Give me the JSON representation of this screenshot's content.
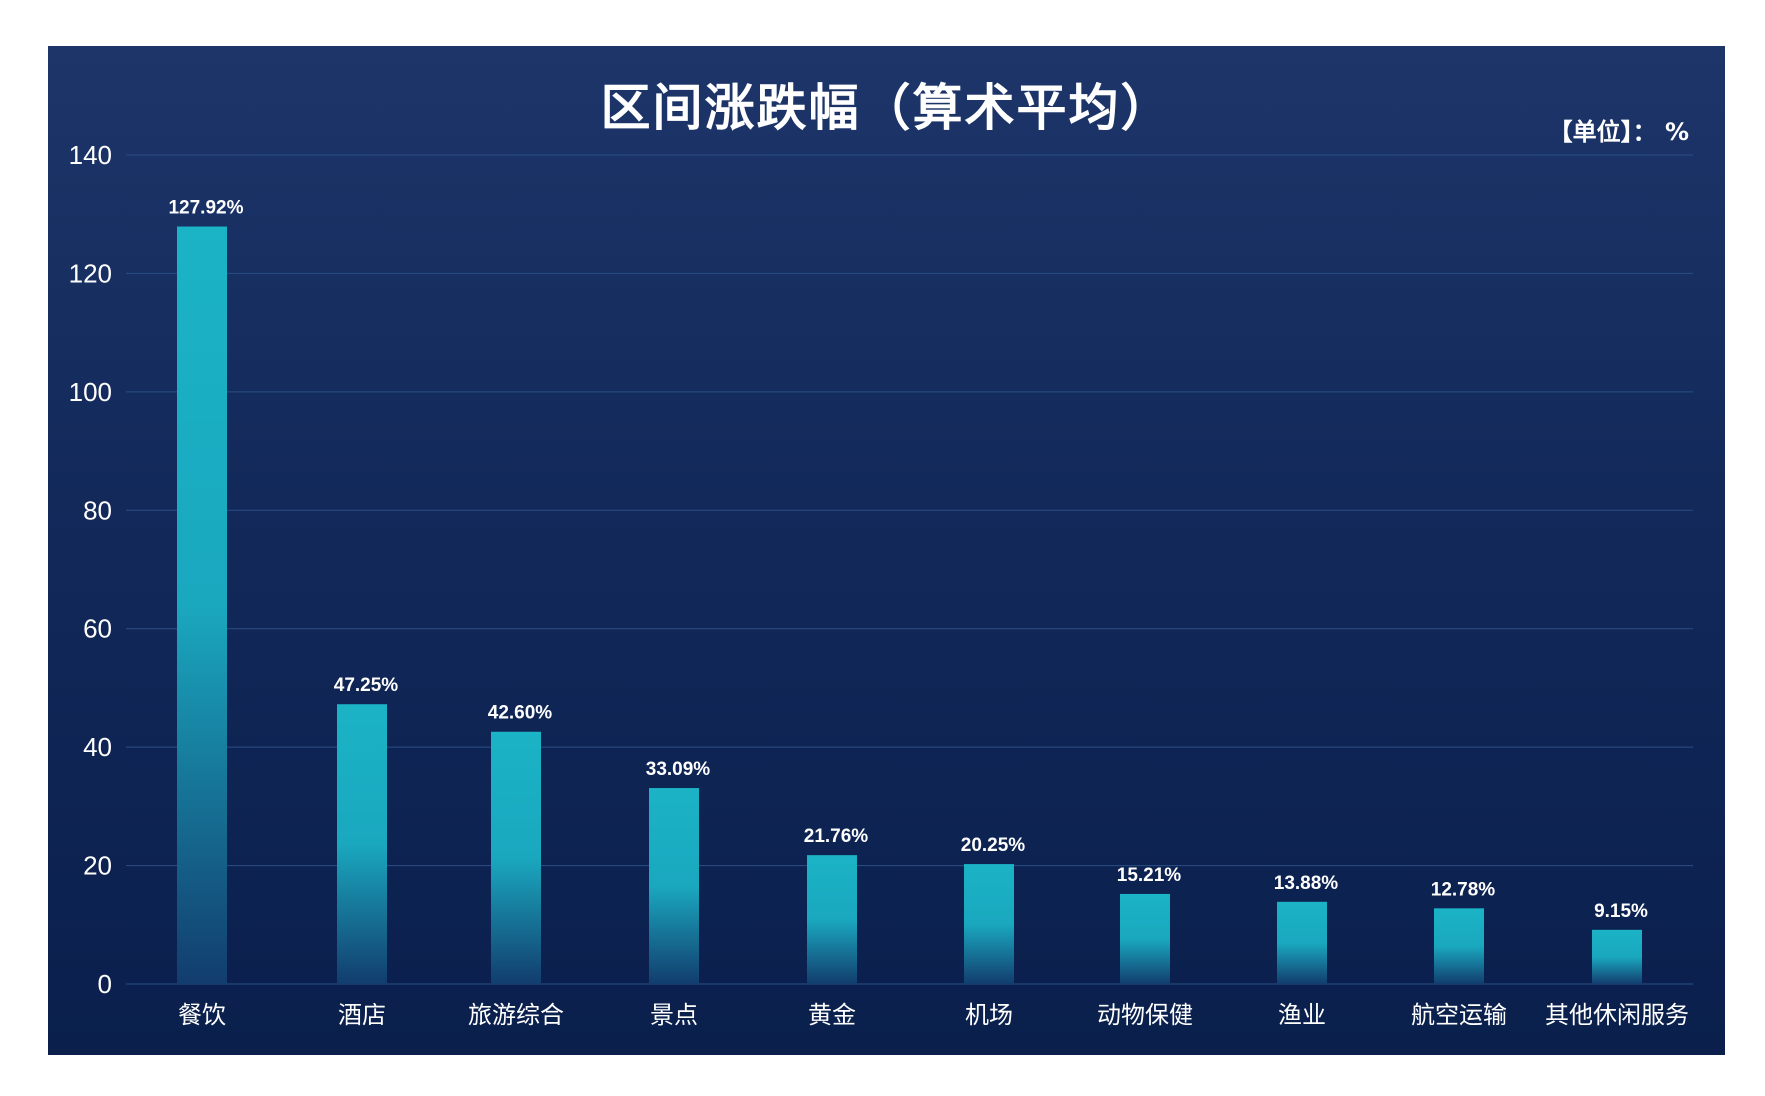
{
  "chart_data": {
    "type": "bar",
    "title": "区间涨跌幅（算术平均）",
    "unit_label": "【单位】： %",
    "categories": [
      "餐饮",
      "酒店",
      "旅游综合",
      "景点",
      "黄金",
      "机场",
      "动物保健",
      "渔业",
      "航空运输",
      "其他休闲服务"
    ],
    "values": [
      127.92,
      47.25,
      42.6,
      33.09,
      21.76,
      20.25,
      15.21,
      13.88,
      12.78,
      9.15
    ],
    "value_labels": [
      "127.92%",
      "47.25%",
      "42.60%",
      "33.09%",
      "21.76%",
      "20.25%",
      "15.21%",
      "13.88%",
      "12.78%",
      "9.15%"
    ],
    "y_ticks": [
      "0",
      "20",
      "40",
      "60",
      "80",
      "100",
      "120",
      "140"
    ],
    "ylim": [
      0,
      140
    ],
    "xlabel": "",
    "ylabel": "",
    "grid": true,
    "colors": {
      "bar_top": "#1bb3c6",
      "bar_bottom": "#123d6e",
      "grid": "#2a4f86",
      "text": "#ffffff"
    }
  }
}
